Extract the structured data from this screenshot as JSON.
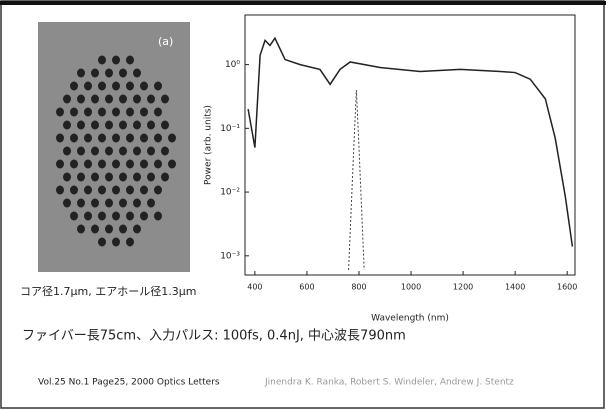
{
  "photo": {
    "tag": "(a)",
    "caption": "コア径1.7μm, エアホール径1.3μm"
  },
  "chart_data": {
    "type": "line",
    "x_label": "Wavelength (nm)",
    "y_label": "Power (arb. units)",
    "log_y": true,
    "xlim": [
      362,
      1630
    ],
    "xticks": [
      400,
      600,
      800,
      1000,
      1200,
      1400,
      1600
    ],
    "ylim": [
      0.0005,
      6
    ],
    "yticks": [
      {
        "value": 0.001,
        "label": "10⁻³"
      },
      {
        "value": 0.01,
        "label": "10⁻²"
      },
      {
        "value": 0.1,
        "label": "10⁻¹"
      },
      {
        "value": 1,
        "label": "10⁰"
      }
    ],
    "series": [
      {
        "color": "#222",
        "x": [
          374,
          400,
          420,
          439,
          458,
          477,
          516,
          574,
          650,
          689,
          727,
          766,
          881,
          1035,
          1189,
          1343,
          1400,
          1458,
          1516,
          1554,
          1593,
          1620
        ],
        "values": [
          0.2,
          0.05,
          1.4,
          2.4,
          2.0,
          2.6,
          1.2,
          1.0,
          0.84,
          0.49,
          0.84,
          1.1,
          0.9,
          0.78,
          0.84,
          0.78,
          0.75,
          0.59,
          0.29,
          0.07,
          0.0084,
          0.0014
        ]
      },
      {
        "color": "#444",
        "dashed": true,
        "x": [
          760,
          780,
          790,
          800,
          820
        ],
        "values": [
          0.0006,
          0.05,
          0.4,
          0.05,
          0.0006
        ]
      }
    ]
  },
  "conditions": "ファイバー長75cm、入力パルス: 100fs, 0.4nJ, 中心波長790nm",
  "citation": {
    "source": "Vol.25 No.1 Page25, 2000  Optics Letters",
    "authors": "Jinendra K. Ranka, Robert S. Windeler, Andrew J. Stentz"
  }
}
